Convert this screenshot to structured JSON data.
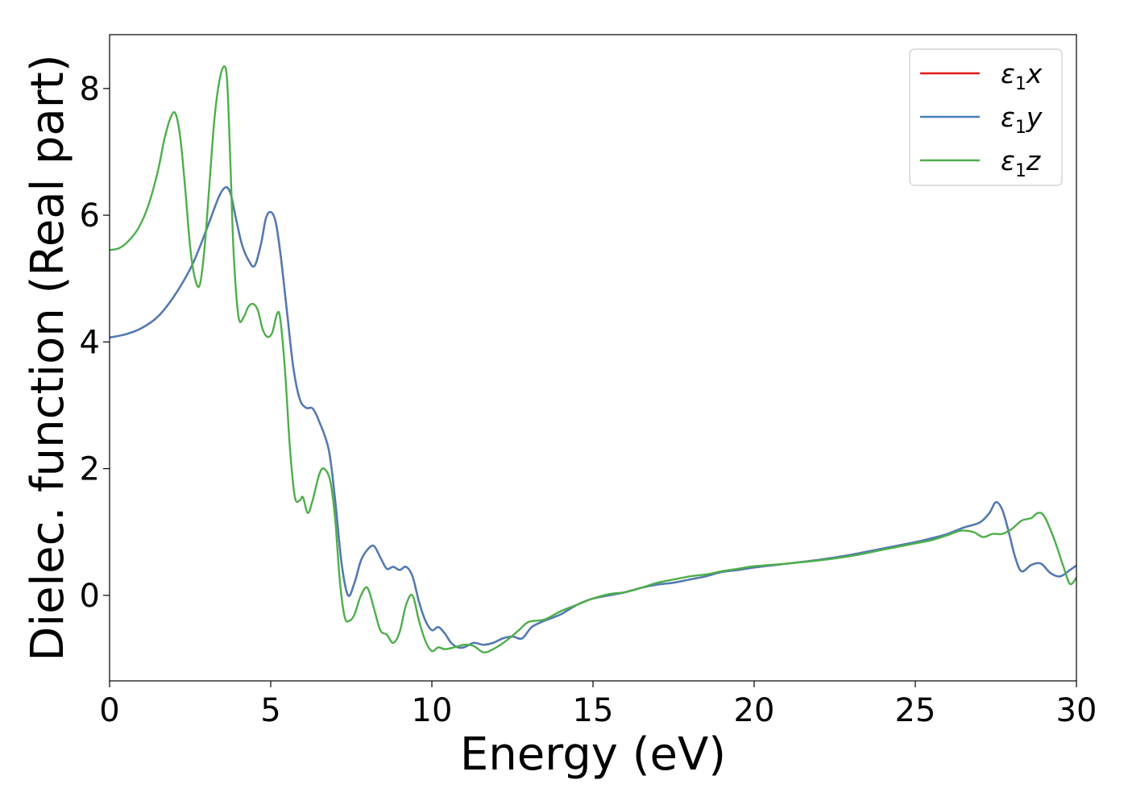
{
  "chart_data": {
    "type": "line",
    "title": "",
    "xlabel": "Energy (eV)",
    "ylabel": "Dielec. function (Real part)",
    "xlim": [
      0,
      30
    ],
    "ylim": [
      -1.35,
      8.85
    ],
    "xticks": [
      0,
      5,
      10,
      15,
      20,
      25,
      30
    ],
    "yticks": [
      0,
      2,
      4,
      6,
      8
    ],
    "grid": false,
    "legend_position": "top-right",
    "series": [
      {
        "name": "ε1x",
        "legend_symbol": "ε",
        "legend_sub": "1",
        "legend_var": "x",
        "color": "#e41a1c",
        "x": [
          0,
          0.5,
          1,
          1.5,
          2,
          2.5,
          2.8,
          3.1,
          3.4,
          3.6,
          3.75,
          3.9,
          4.1,
          4.3,
          4.5,
          4.7,
          4.85,
          5,
          5.15,
          5.3,
          5.5,
          5.7,
          5.9,
          6.1,
          6.3,
          6.5,
          6.8,
          7.0,
          7.2,
          7.4,
          7.6,
          7.8,
          8.0,
          8.2,
          8.4,
          8.6,
          8.8,
          9.0,
          9.2,
          9.4,
          9.6,
          9.8,
          10.0,
          10.2,
          10.4,
          10.6,
          10.8,
          11.0,
          11.3,
          11.6,
          11.9,
          12.2,
          12.5,
          12.8,
          13.1,
          13.5,
          14.0,
          14.5,
          15,
          15.5,
          16,
          16.5,
          17,
          17.5,
          18,
          18.5,
          19,
          19.5,
          20,
          21,
          22,
          23,
          24,
          25,
          25.5,
          26,
          26.5,
          27.0,
          27.3,
          27.5,
          27.7,
          27.9,
          28.1,
          28.3,
          28.6,
          28.9,
          29.2,
          29.5,
          29.8,
          30
        ],
        "y": [
          4.07,
          4.12,
          4.22,
          4.4,
          4.72,
          5.15,
          5.5,
          5.9,
          6.3,
          6.44,
          6.35,
          6.0,
          5.55,
          5.3,
          5.2,
          5.55,
          5.95,
          6.05,
          5.9,
          5.4,
          4.5,
          3.6,
          3.1,
          2.96,
          2.95,
          2.75,
          2.3,
          1.5,
          0.5,
          0.0,
          0.2,
          0.55,
          0.72,
          0.78,
          0.6,
          0.42,
          0.45,
          0.4,
          0.45,
          0.3,
          -0.1,
          -0.4,
          -0.55,
          -0.5,
          -0.6,
          -0.75,
          -0.82,
          -0.82,
          -0.75,
          -0.78,
          -0.75,
          -0.68,
          -0.65,
          -0.68,
          -0.5,
          -0.4,
          -0.3,
          -0.15,
          -0.05,
          0.0,
          0.05,
          0.12,
          0.17,
          0.2,
          0.25,
          0.3,
          0.37,
          0.4,
          0.44,
          0.5,
          0.56,
          0.64,
          0.74,
          0.84,
          0.9,
          0.97,
          1.07,
          1.15,
          1.3,
          1.47,
          1.35,
          1.0,
          0.6,
          0.38,
          0.48,
          0.5,
          0.35,
          0.3,
          0.4,
          0.47
        ]
      },
      {
        "name": "ε1y",
        "legend_symbol": "ε",
        "legend_sub": "1",
        "legend_var": "y",
        "color": "#4a7eb8",
        "x": [
          0,
          0.5,
          1,
          1.5,
          2,
          2.5,
          2.8,
          3.1,
          3.4,
          3.6,
          3.75,
          3.9,
          4.1,
          4.3,
          4.5,
          4.7,
          4.85,
          5,
          5.15,
          5.3,
          5.5,
          5.7,
          5.9,
          6.1,
          6.3,
          6.5,
          6.8,
          7.0,
          7.2,
          7.4,
          7.6,
          7.8,
          8.0,
          8.2,
          8.4,
          8.6,
          8.8,
          9.0,
          9.2,
          9.4,
          9.6,
          9.8,
          10.0,
          10.2,
          10.4,
          10.6,
          10.8,
          11.0,
          11.3,
          11.6,
          11.9,
          12.2,
          12.5,
          12.8,
          13.1,
          13.5,
          14.0,
          14.5,
          15,
          15.5,
          16,
          16.5,
          17,
          17.5,
          18,
          18.5,
          19,
          19.5,
          20,
          21,
          22,
          23,
          24,
          25,
          25.5,
          26,
          26.5,
          27.0,
          27.3,
          27.5,
          27.7,
          27.9,
          28.1,
          28.3,
          28.6,
          28.9,
          29.2,
          29.5,
          29.8,
          30
        ],
        "y": [
          4.07,
          4.12,
          4.22,
          4.4,
          4.72,
          5.15,
          5.5,
          5.9,
          6.3,
          6.44,
          6.35,
          6.0,
          5.55,
          5.3,
          5.2,
          5.55,
          5.95,
          6.05,
          5.9,
          5.4,
          4.5,
          3.6,
          3.1,
          2.96,
          2.95,
          2.75,
          2.3,
          1.5,
          0.5,
          0.0,
          0.2,
          0.55,
          0.72,
          0.78,
          0.6,
          0.42,
          0.45,
          0.4,
          0.45,
          0.3,
          -0.1,
          -0.4,
          -0.55,
          -0.5,
          -0.6,
          -0.75,
          -0.82,
          -0.82,
          -0.75,
          -0.78,
          -0.75,
          -0.68,
          -0.65,
          -0.68,
          -0.5,
          -0.4,
          -0.3,
          -0.15,
          -0.05,
          0.0,
          0.05,
          0.12,
          0.17,
          0.2,
          0.25,
          0.3,
          0.37,
          0.4,
          0.44,
          0.5,
          0.56,
          0.64,
          0.74,
          0.84,
          0.9,
          0.97,
          1.07,
          1.15,
          1.3,
          1.47,
          1.35,
          1.0,
          0.6,
          0.38,
          0.48,
          0.5,
          0.35,
          0.3,
          0.4,
          0.47
        ]
      },
      {
        "name": "ε1z",
        "legend_symbol": "ε",
        "legend_sub": "1",
        "legend_var": "z",
        "color": "#4daf4a",
        "x": [
          0,
          0.3,
          0.6,
          0.9,
          1.2,
          1.5,
          1.7,
          1.9,
          2.05,
          2.2,
          2.35,
          2.5,
          2.65,
          2.8,
          2.95,
          3.1,
          3.25,
          3.4,
          3.55,
          3.65,
          3.75,
          3.85,
          4.0,
          4.15,
          4.3,
          4.45,
          4.6,
          4.75,
          4.9,
          5.05,
          5.2,
          5.3,
          5.45,
          5.6,
          5.75,
          5.9,
          6.0,
          6.15,
          6.3,
          6.5,
          6.65,
          6.85,
          7.0,
          7.15,
          7.3,
          7.45,
          7.6,
          7.8,
          8.0,
          8.2,
          8.4,
          8.6,
          8.8,
          9.0,
          9.2,
          9.4,
          9.6,
          9.8,
          10.0,
          10.2,
          10.4,
          10.7,
          11.0,
          11.3,
          11.6,
          11.9,
          12.3,
          12.7,
          13.0,
          13.5,
          14.0,
          14.5,
          15,
          15.5,
          16,
          16.5,
          17,
          17.5,
          18,
          18.5,
          19,
          19.5,
          20,
          21,
          22,
          23,
          24,
          25,
          25.5,
          26,
          26.4,
          26.8,
          27.1,
          27.4,
          27.7,
          28.0,
          28.3,
          28.6,
          28.8,
          29.0,
          29.3,
          29.6,
          29.8,
          30
        ],
        "y": [
          5.45,
          5.48,
          5.6,
          5.8,
          6.15,
          6.7,
          7.2,
          7.55,
          7.6,
          7.2,
          6.4,
          5.5,
          5.0,
          4.9,
          5.5,
          6.5,
          7.5,
          8.1,
          8.35,
          8.1,
          6.8,
          5.4,
          4.4,
          4.38,
          4.55,
          4.6,
          4.5,
          4.2,
          4.08,
          4.15,
          4.45,
          4.35,
          3.5,
          2.3,
          1.55,
          1.5,
          1.55,
          1.3,
          1.5,
          1.9,
          2.0,
          1.8,
          1.2,
          0.2,
          -0.35,
          -0.4,
          -0.3,
          0.0,
          0.12,
          -0.2,
          -0.55,
          -0.62,
          -0.75,
          -0.58,
          -0.15,
          0.0,
          -0.4,
          -0.72,
          -0.88,
          -0.82,
          -0.85,
          -0.82,
          -0.78,
          -0.8,
          -0.9,
          -0.85,
          -0.72,
          -0.55,
          -0.42,
          -0.38,
          -0.25,
          -0.15,
          -0.05,
          0.02,
          0.05,
          0.12,
          0.2,
          0.25,
          0.3,
          0.33,
          0.38,
          0.42,
          0.46,
          0.5,
          0.55,
          0.62,
          0.72,
          0.82,
          0.87,
          0.95,
          1.02,
          1.0,
          0.92,
          0.97,
          0.97,
          1.05,
          1.18,
          1.22,
          1.3,
          1.25,
          0.9,
          0.45,
          0.18,
          0.28
        ]
      }
    ]
  }
}
